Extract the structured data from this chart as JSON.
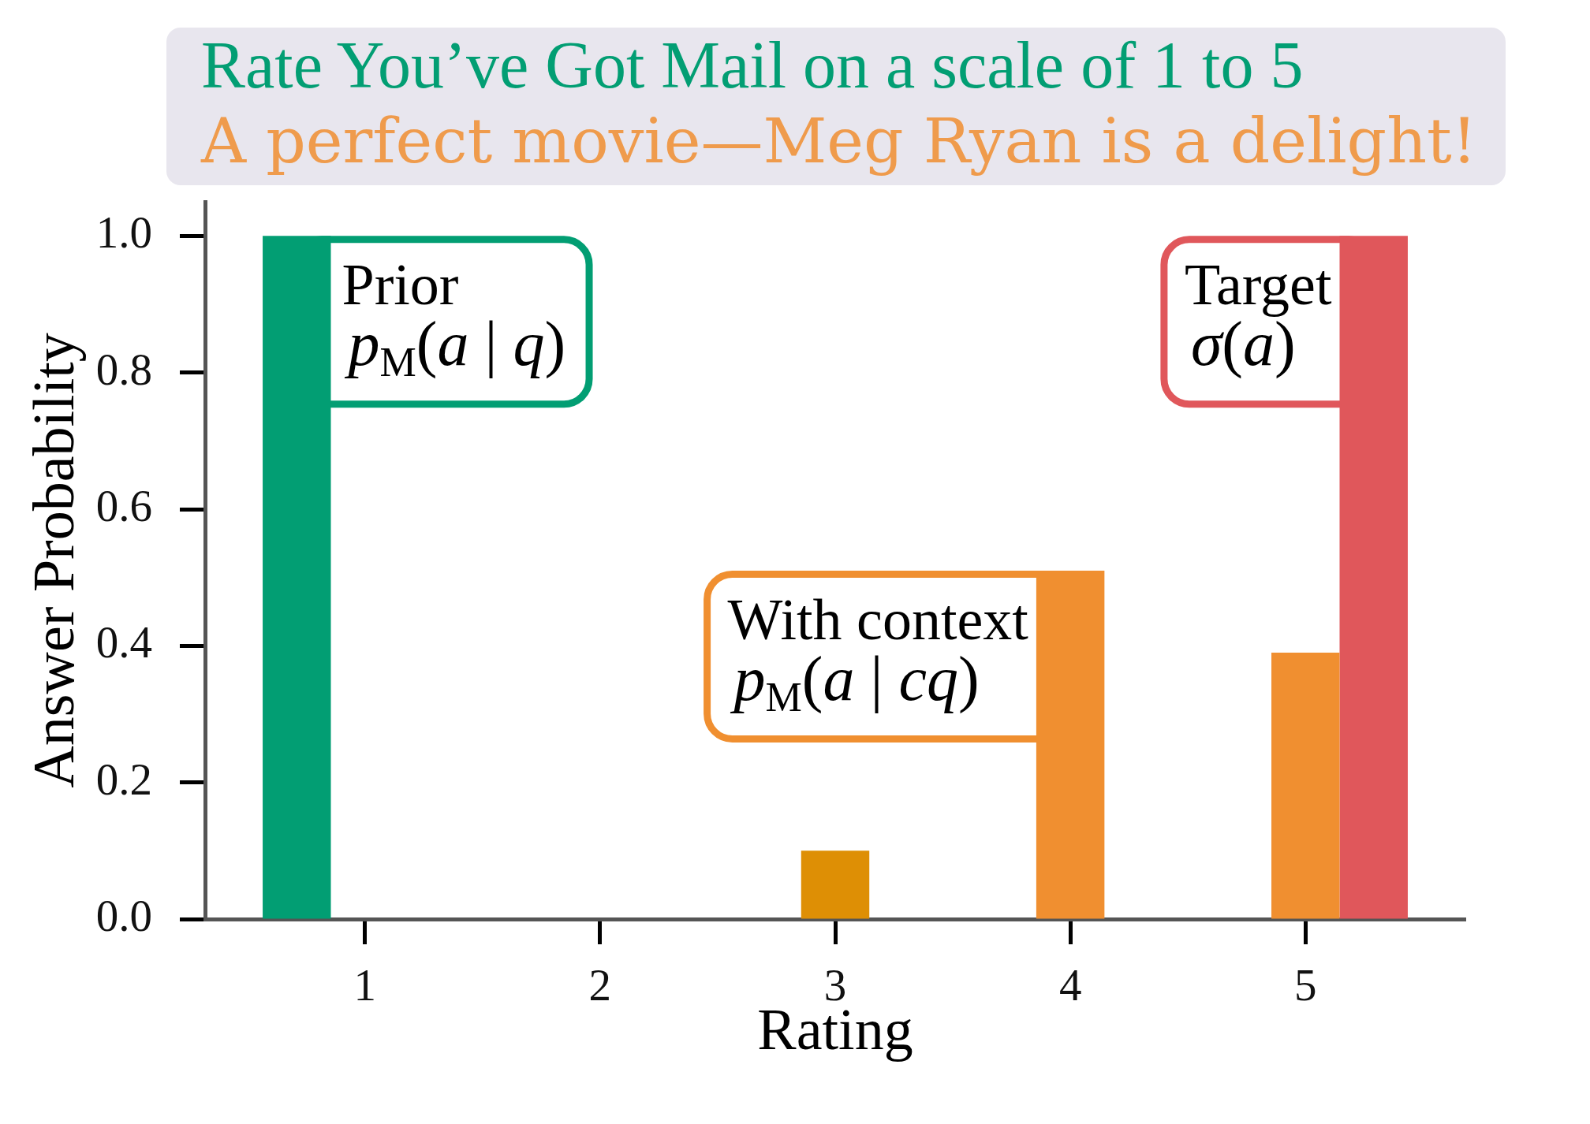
{
  "chart_data": {
    "type": "bar",
    "title": "Rate You’ve Got Mail on a scale of 1 to 5",
    "subtitle": "A perfect movie—Meg Ryan is a delight!",
    "xlabel": "Rating",
    "ylabel": "Answer Probability",
    "categories": [
      "1",
      "2",
      "3",
      "4",
      "5"
    ],
    "series": [
      {
        "name": "Prior",
        "color": "#029e73",
        "values": [
          1.0,
          null,
          null,
          null,
          null
        ]
      },
      {
        "name": "With context",
        "color": "#f08f30",
        "colors": [
          "#f08f30",
          "#f08f30",
          "#de8f05",
          "#f08f30",
          "#f08f30"
        ],
        "values": [
          null,
          null,
          0.1,
          0.51,
          0.39
        ]
      },
      {
        "name": "Target",
        "color": "#e0575b",
        "values": [
          null,
          null,
          null,
          null,
          1.0
        ]
      }
    ],
    "annotations": [
      "p$_{M}$(a | q)",
      "p$_{M}$(a | cq)",
      "σ(a)"
    ],
    "ylim": [
      0,
      1.05
    ],
    "yticks": [
      {
        "value": 0,
        "label": "0.0"
      },
      0.2,
      0.4,
      0.6,
      0.8,
      {
        "value": 1,
        "label": "1.0"
      }
    ]
  }
}
